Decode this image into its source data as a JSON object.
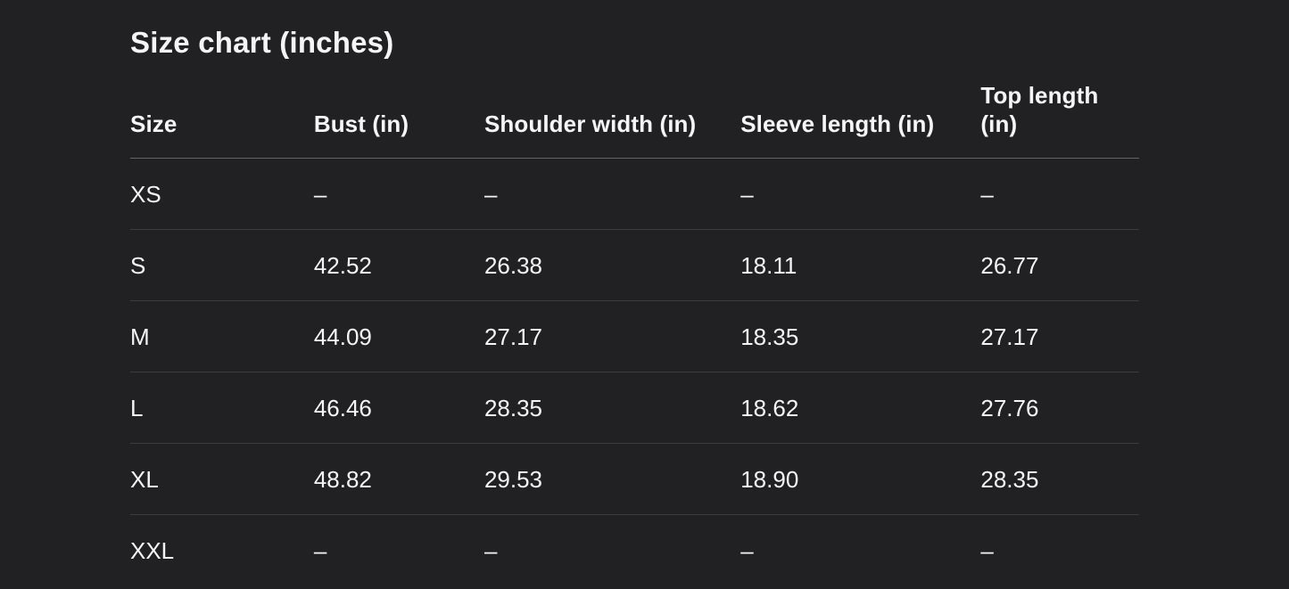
{
  "colors": {
    "background": "#212123",
    "text": "#f5f5f7",
    "header_divider": "rgba(255,255,255,0.30)",
    "row_divider": "rgba(255,255,255,0.12)"
  },
  "section": {
    "title": "Size chart (inches)",
    "table": {
      "columns": [
        "Size",
        "Bust (in)",
        "Shoulder width (in)",
        "Sleeve length (in)",
        "Top length (in)"
      ],
      "rows": [
        {
          "cells": [
            "XS",
            "–",
            "–",
            "–",
            "–"
          ]
        },
        {
          "cells": [
            "S",
            "42.52",
            "26.38",
            "18.11",
            "26.77"
          ]
        },
        {
          "cells": [
            "M",
            "44.09",
            "27.17",
            "18.35",
            "27.17"
          ]
        },
        {
          "cells": [
            "L",
            "46.46",
            "28.35",
            "18.62",
            "27.76"
          ]
        },
        {
          "cells": [
            "XL",
            "48.82",
            "29.53",
            "18.90",
            "28.35"
          ]
        },
        {
          "cells": [
            "XXL",
            "–",
            "–",
            "–",
            "–"
          ]
        }
      ]
    }
  }
}
